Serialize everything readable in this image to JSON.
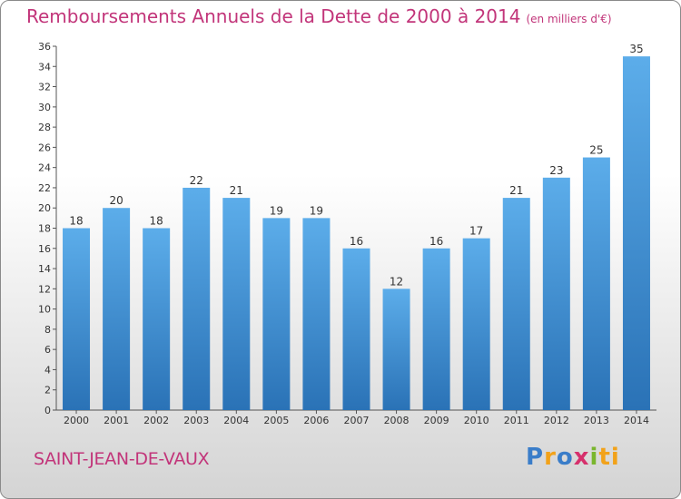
{
  "title": "Remboursements Annuels de la Dette de 2000 à 2014",
  "unit": "(en milliers d'€)",
  "commune": "SAINT-JEAN-DE-VAUX",
  "logo": {
    "p": "P",
    "r": "r",
    "o": "o",
    "x": "x",
    "i": "i",
    "t": "ti"
  },
  "colors": {
    "bar_light": "#5aaae6",
    "bar_dark": "#2a72b6",
    "title": "#c2357a"
  },
  "chart_data": {
    "type": "bar",
    "title": "Remboursements Annuels de la Dette de 2000 à 2014",
    "xlabel": "",
    "ylabel": "",
    "ylim": [
      0,
      36
    ],
    "yticks": [
      0,
      2,
      4,
      6,
      8,
      10,
      12,
      14,
      16,
      18,
      20,
      22,
      24,
      26,
      28,
      30,
      32,
      34,
      36
    ],
    "categories": [
      "2000",
      "2001",
      "2002",
      "2003",
      "2004",
      "2005",
      "2006",
      "2007",
      "2008",
      "2009",
      "2010",
      "2011",
      "2012",
      "2013",
      "2014"
    ],
    "values": [
      18,
      20,
      18,
      22,
      21,
      19,
      19,
      16,
      12,
      16,
      17,
      21,
      23,
      25,
      35
    ],
    "grid": false,
    "data_labels": true
  }
}
